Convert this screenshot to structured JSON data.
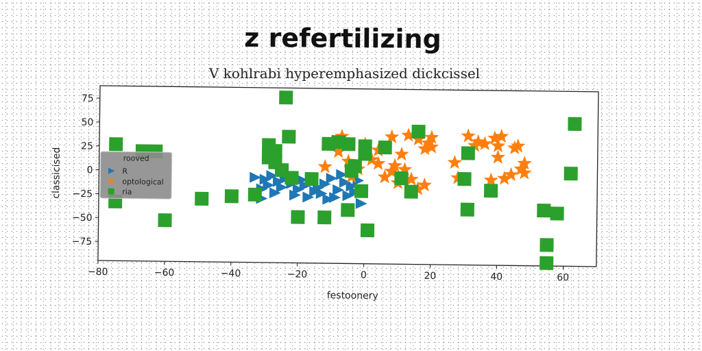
{
  "chart_data": {
    "type": "scatter",
    "title": "z refertilizing",
    "subtitle": "V kohlrabi hyperemphasized dickcissel",
    "xlabel": "festoonery",
    "ylabel": "classicised",
    "xlim": [
      -80,
      70
    ],
    "ylim": [
      -95,
      88
    ],
    "xticks": [
      -80,
      -60,
      -40,
      -20,
      0,
      20,
      40,
      60
    ],
    "yticks": [
      75,
      50,
      25,
      0,
      -25,
      -50,
      -75
    ],
    "grid": false,
    "legend": {
      "title": "rooved",
      "position": "center-left"
    },
    "series": [
      {
        "name": "R",
        "marker": "triangle-right",
        "color": "#1f77b4",
        "points": [
          [
            -33,
            -6
          ],
          [
            -30,
            -8
          ],
          [
            -28,
            -4
          ],
          [
            -26,
            -10
          ],
          [
            -24,
            -7
          ],
          [
            -31,
            -18
          ],
          [
            -29,
            -14
          ],
          [
            -25,
            -16
          ],
          [
            -22,
            -12
          ],
          [
            -20,
            -18
          ],
          [
            -18,
            -14
          ],
          [
            -16,
            -10
          ],
          [
            -14,
            -16
          ],
          [
            -12,
            -12
          ],
          [
            -10,
            -6
          ],
          [
            -8,
            -18
          ],
          [
            -6,
            -10
          ],
          [
            -4,
            -14
          ],
          [
            -2,
            -8
          ],
          [
            -21,
            -24
          ],
          [
            -17,
            -26
          ],
          [
            -13,
            -22
          ],
          [
            -9,
            -26
          ],
          [
            -5,
            -24
          ],
          [
            -27,
            -22
          ],
          [
            -15,
            -20
          ],
          [
            -11,
            -28
          ],
          [
            -31,
            -28
          ],
          [
            -7,
            -2
          ],
          [
            -19,
            -8
          ],
          [
            -23,
            -2
          ],
          [
            -3,
            -20
          ],
          [
            -1,
            -32
          ]
        ]
      },
      {
        "name": "optological",
        "marker": "star",
        "color": "#ff7f0e",
        "points": [
          [
            -7,
            38
          ],
          [
            -10,
            32
          ],
          [
            -8,
            22
          ],
          [
            -5,
            12
          ],
          [
            -2,
            4
          ],
          [
            0,
            30
          ],
          [
            2,
            14
          ],
          [
            4,
            24
          ],
          [
            6,
            -4
          ],
          [
            8,
            2
          ],
          [
            9,
            8
          ],
          [
            10,
            -10
          ],
          [
            12,
            4
          ],
          [
            14,
            -6
          ],
          [
            16,
            -16
          ],
          [
            18,
            -12
          ],
          [
            8,
            38
          ],
          [
            13,
            40
          ],
          [
            16,
            36
          ],
          [
            18,
            26
          ],
          [
            19,
            32
          ],
          [
            20,
            28
          ],
          [
            20,
            38
          ],
          [
            27,
            12
          ],
          [
            28,
            -4
          ],
          [
            31,
            40
          ],
          [
            33,
            30
          ],
          [
            34,
            34
          ],
          [
            38,
            -6
          ],
          [
            39,
            38
          ],
          [
            40,
            18
          ],
          [
            40,
            30
          ],
          [
            41,
            40
          ],
          [
            42,
            -4
          ],
          [
            44,
            0
          ],
          [
            45,
            28
          ],
          [
            46,
            30
          ],
          [
            47,
            6
          ],
          [
            48,
            12
          ],
          [
            48,
            2
          ],
          [
            -4,
            -4
          ],
          [
            -12,
            6
          ],
          [
            4,
            10
          ],
          [
            11,
            20
          ],
          [
            36,
            32
          ]
        ]
      },
      {
        "name": "ria",
        "marker": "square",
        "color": "#2ca02c",
        "points": [
          [
            -75,
            27
          ],
          [
            -67,
            20
          ],
          [
            -63,
            20
          ],
          [
            -75,
            -33
          ],
          [
            -60,
            -52
          ],
          [
            -49,
            -29
          ],
          [
            -40,
            -26
          ],
          [
            -33,
            -24
          ],
          [
            -29,
            15
          ],
          [
            -27,
            10
          ],
          [
            -29,
            28
          ],
          [
            -27,
            22
          ],
          [
            -25,
            2
          ],
          [
            -24,
            78
          ],
          [
            -23,
            37
          ],
          [
            -22,
            -6
          ],
          [
            -20,
            -47
          ],
          [
            -16,
            -7
          ],
          [
            -12,
            -47
          ],
          [
            -11,
            30
          ],
          [
            -8,
            32
          ],
          [
            -5,
            -39
          ],
          [
            -5,
            30
          ],
          [
            -4,
            2
          ],
          [
            -3,
            7
          ],
          [
            -1,
            -19
          ],
          [
            0,
            20
          ],
          [
            0,
            28
          ],
          [
            1,
            -60
          ],
          [
            6,
            27
          ],
          [
            11,
            -5
          ],
          [
            14,
            -19
          ],
          [
            16,
            44
          ],
          [
            30,
            -5
          ],
          [
            31,
            -37
          ],
          [
            31,
            22
          ],
          [
            38,
            -17
          ],
          [
            54,
            -37
          ],
          [
            55,
            -73
          ],
          [
            55,
            -92
          ],
          [
            58,
            -40
          ],
          [
            62,
            2
          ],
          [
            63,
            54
          ]
        ]
      }
    ]
  }
}
